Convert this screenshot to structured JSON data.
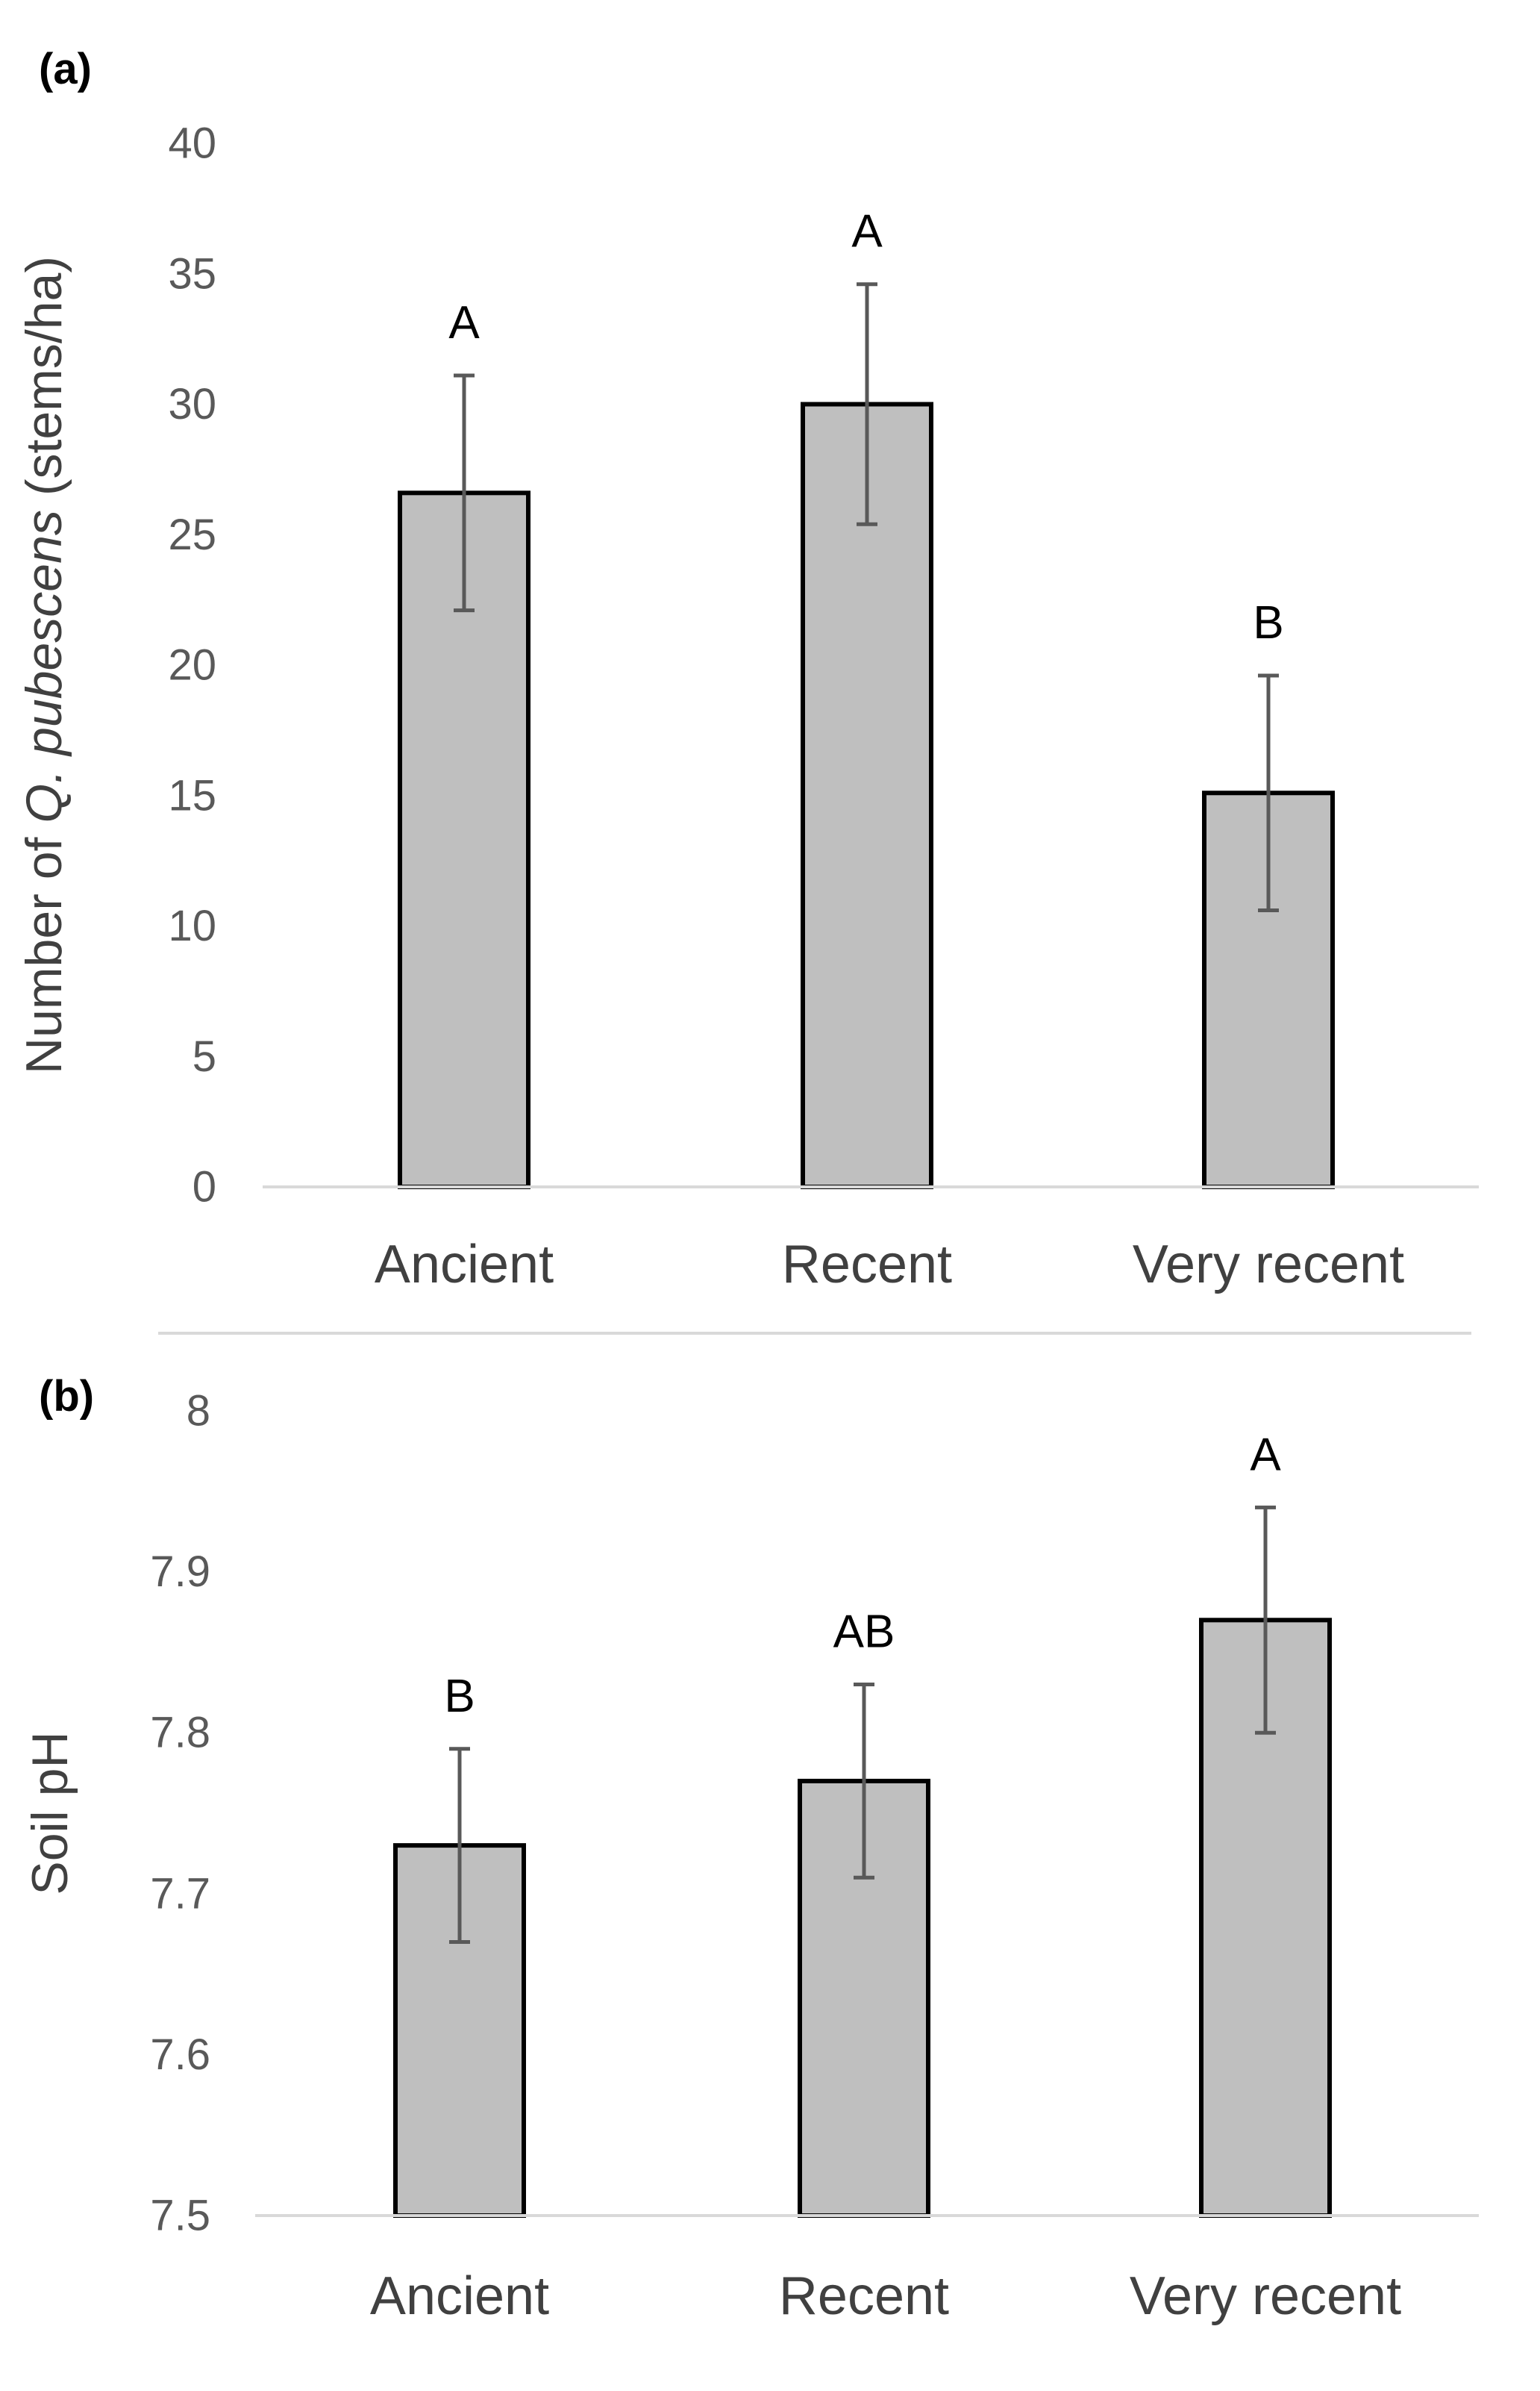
{
  "chart_data": [
    {
      "type": "bar",
      "panel_label": "(a)",
      "title": "",
      "xlabel": "",
      "ylabel_parts": [
        "Number of ",
        "Q. pubescens",
        " (stems/ha)"
      ],
      "categories": [
        "Ancient",
        "Recent",
        "Very recent"
      ],
      "values": [
        26.6,
        30.0,
        15.1
      ],
      "errors": [
        4.5,
        4.6,
        4.5
      ],
      "significance": [
        "A",
        "A",
        "B"
      ],
      "ylim": [
        0,
        40
      ],
      "yticks": [
        0,
        5,
        10,
        15,
        20,
        25,
        30,
        35,
        40
      ],
      "ytick_labels": [
        "0",
        "5",
        "10",
        "15",
        "20",
        "25",
        "30",
        "35",
        "40"
      ],
      "grid": false,
      "colors": {
        "bar": "#bfbfbf",
        "bar_edge": "#000000",
        "error": "#595959"
      }
    },
    {
      "type": "bar",
      "panel_label": "(b)",
      "title": "",
      "xlabel": "",
      "ylabel_parts": [
        "Soil pH"
      ],
      "categories": [
        "Ancient",
        "Recent",
        "Very recent"
      ],
      "values": [
        7.73,
        7.77,
        7.87
      ],
      "errors": [
        0.06,
        0.06,
        0.07
      ],
      "significance": [
        "B",
        "AB",
        "A"
      ],
      "ylim": [
        7.5,
        8.0
      ],
      "yticks": [
        7.5,
        7.6,
        7.7,
        7.8,
        7.9,
        8.0
      ],
      "ytick_labels": [
        "7.5",
        "7.6",
        "7.7",
        "7.8",
        "7.9",
        "8"
      ],
      "grid": false,
      "colors": {
        "bar": "#bfbfbf",
        "bar_edge": "#000000",
        "error": "#595959"
      }
    }
  ]
}
